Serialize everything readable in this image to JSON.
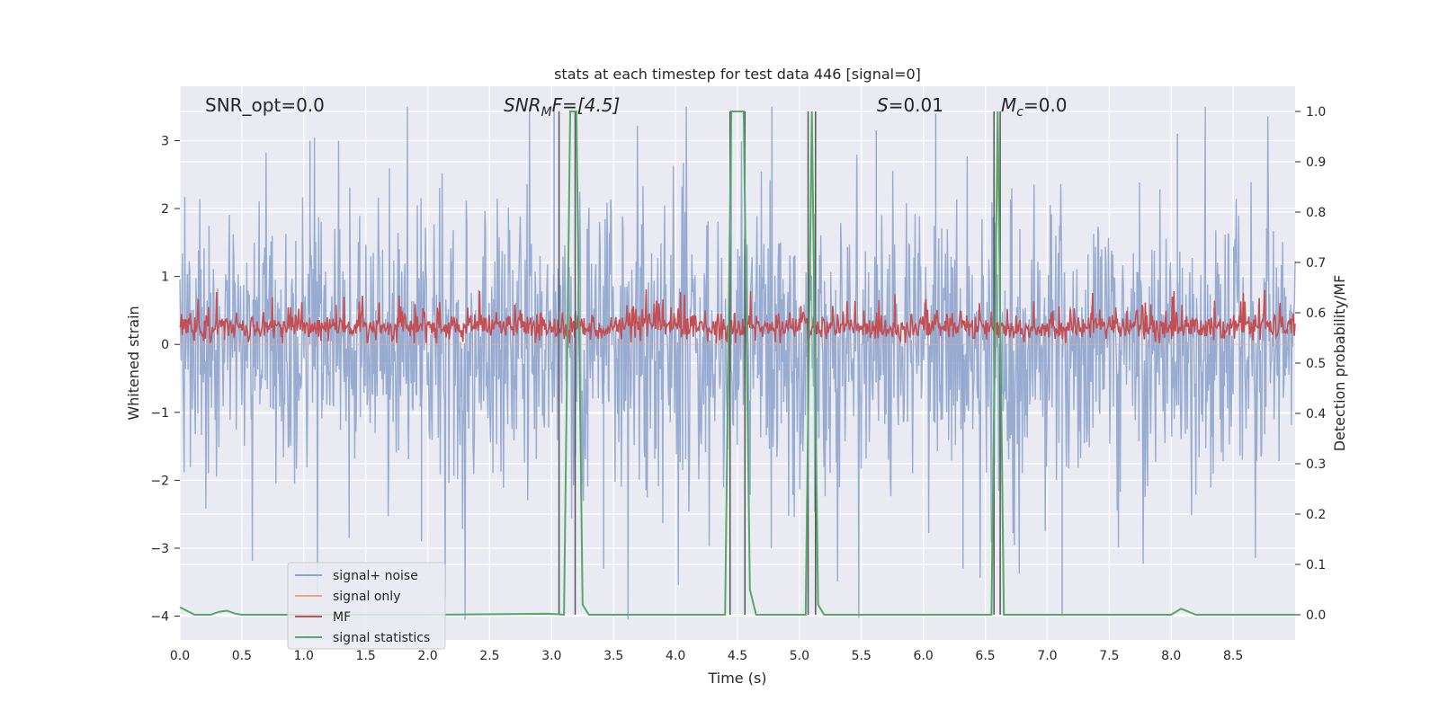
{
  "chart_data": {
    "type": "line",
    "title": "stats at each timestep for test data 446 [signal=0]",
    "xlabel": "Time (s)",
    "ylabel_left": "Whitened strain",
    "ylabel_right": "Detection probability/MF",
    "xlim": [
      0.0,
      9.0
    ],
    "ylim_left": [
      -4.35,
      3.8
    ],
    "ylim_right": [
      -0.05,
      1.05
    ],
    "x_ticks": [
      "0.0",
      "0.5",
      "1.0",
      "1.5",
      "2.0",
      "2.5",
      "3.0",
      "3.5",
      "4.0",
      "4.5",
      "5.0",
      "5.5",
      "6.0",
      "6.5",
      "7.0",
      "7.5",
      "8.0",
      "8.5"
    ],
    "y_ticks_left": [
      "−4",
      "−3",
      "−2",
      "−1",
      "0",
      "1",
      "2",
      "3"
    ],
    "y_ticks_right": [
      "0.0",
      "0.1",
      "0.2",
      "0.3",
      "0.4",
      "0.5",
      "0.6",
      "0.7",
      "0.8",
      "0.9",
      "1.0"
    ],
    "grid": true,
    "legend_position": "lower-left",
    "annotations": {
      "snr_opt": "SNR_opt=0.0",
      "snr_mf_base": "SNR",
      "snr_mf_sub": "M",
      "snr_mf_rest": "F=[4.5]",
      "s_sym": "S",
      "s_val": "=0.01",
      "mc_sym": "M",
      "mc_sub": "c",
      "mc_val": "=0.0"
    },
    "series": [
      {
        "name": "signal+ noise",
        "color": "#8fa5cd",
        "axis": "left",
        "style": "noise",
        "x_range": [
          0.0,
          9.0
        ],
        "amplitude": 1.0,
        "peaks": [
          3.4,
          -3.6
        ]
      },
      {
        "name": "signal only",
        "color": "#e8a68a",
        "axis": "left",
        "style": "flat",
        "values": [
          0.0,
          0.0
        ]
      },
      {
        "name": "MF",
        "color": "#c44e52",
        "axis": "left",
        "style": "noise",
        "center": 0.25,
        "amplitude": 0.18
      },
      {
        "name": "signal statistics",
        "color": "#55a868",
        "axis": "right",
        "x": [
          0.0,
          0.12,
          0.25,
          0.32,
          0.38,
          0.45,
          0.5,
          1.0,
          2.0,
          2.95,
          3.05,
          3.1,
          3.15,
          3.2,
          3.25,
          3.3,
          4.4,
          4.45,
          4.5,
          4.55,
          4.6,
          4.65,
          4.7,
          5.05,
          5.1,
          5.15,
          5.2,
          5.25,
          5.3,
          6.55,
          6.6,
          6.65,
          6.7,
          6.75,
          8.0,
          8.08,
          8.2,
          9.0
        ],
        "values": [
          0.015,
          0.0,
          0.0,
          0.006,
          0.008,
          0.002,
          0.0,
          0.0,
          0.0,
          0.002,
          0.001,
          0.0,
          1.0,
          1.0,
          0.02,
          0.0,
          0.0,
          1.0,
          1.0,
          1.0,
          0.05,
          0.0,
          0.0,
          0.0,
          1.0,
          0.02,
          0.0,
          0.0,
          0.0,
          0.0,
          1.0,
          0.0,
          0.0,
          0.0,
          0.0,
          0.012,
          0.0,
          0.0
        ]
      }
    ],
    "vertical_markers": [
      3.06,
      3.19,
      4.44,
      4.56,
      5.07,
      5.13,
      6.57,
      6.62
    ]
  }
}
